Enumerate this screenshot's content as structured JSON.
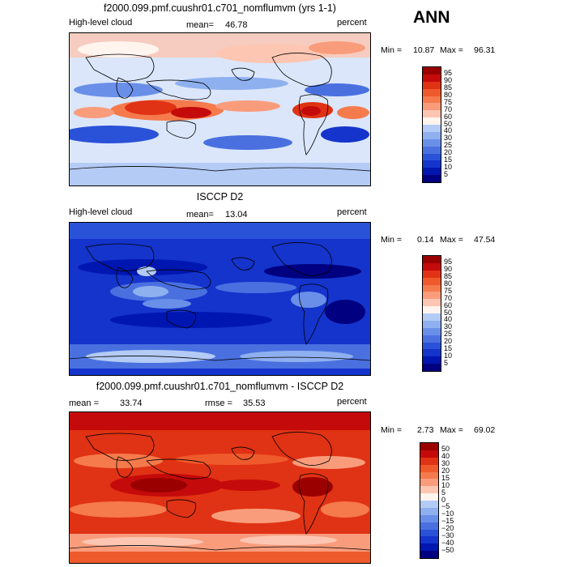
{
  "season": "ANN",
  "colors": {
    "scale": [
      "#9b0000",
      "#c40a0a",
      "#e03214",
      "#ef5a2c",
      "#f57a4c",
      "#f99c7c",
      "#fdc6b2",
      "#fff4ee",
      "#dbe6fb",
      "#b3cbf5",
      "#8eb0ef",
      "#6a8fe8",
      "#4a70e0",
      "#2a52d8",
      "#1434cc",
      "#0016b0",
      "#000080"
    ],
    "land_outline": "#000000"
  },
  "panels": [
    {
      "title": "f2000.099.pmf.cuushr01.c701_nomflumvm (yrs 1-1)",
      "left_label": "High-level cloud",
      "stat_label": "mean=",
      "stat_value": "46.78",
      "right_label": "percent",
      "min_label": "Min =",
      "min_value": "10.87",
      "max_label": "Max =",
      "max_value": "96.31",
      "levels": [
        "95",
        "90",
        "85",
        "80",
        "75",
        "70",
        "60",
        "50",
        "40",
        "30",
        "25",
        "20",
        "15",
        "10",
        "5"
      ]
    },
    {
      "title": "ISCCP D2",
      "left_label": "High-level cloud",
      "stat_label": "mean=",
      "stat_value": "13.04",
      "right_label": "percent",
      "min_label": "Min =",
      "min_value": "0.14",
      "max_label": "Max =",
      "max_value": "47.54",
      "levels": [
        "95",
        "90",
        "85",
        "80",
        "75",
        "70",
        "60",
        "50",
        "40",
        "30",
        "25",
        "20",
        "15",
        "10",
        "5"
      ]
    },
    {
      "title": "f2000.099.pmf.cuushr01.c701_nomflumvm - ISCCP D2",
      "left_label": "mean =",
      "left_value": "33.74",
      "rmse_label": "rmse =",
      "rmse_value": "35.53",
      "right_label": "percent",
      "min_label": "Min =",
      "min_value": "2.73",
      "max_label": "Max =",
      "max_value": "69.02",
      "levels": [
        "50",
        "40",
        "30",
        "20",
        "15",
        "10",
        "5",
        "0",
        "−5",
        "−10",
        "−15",
        "−20",
        "−30",
        "−40",
        "−50"
      ]
    }
  ]
}
